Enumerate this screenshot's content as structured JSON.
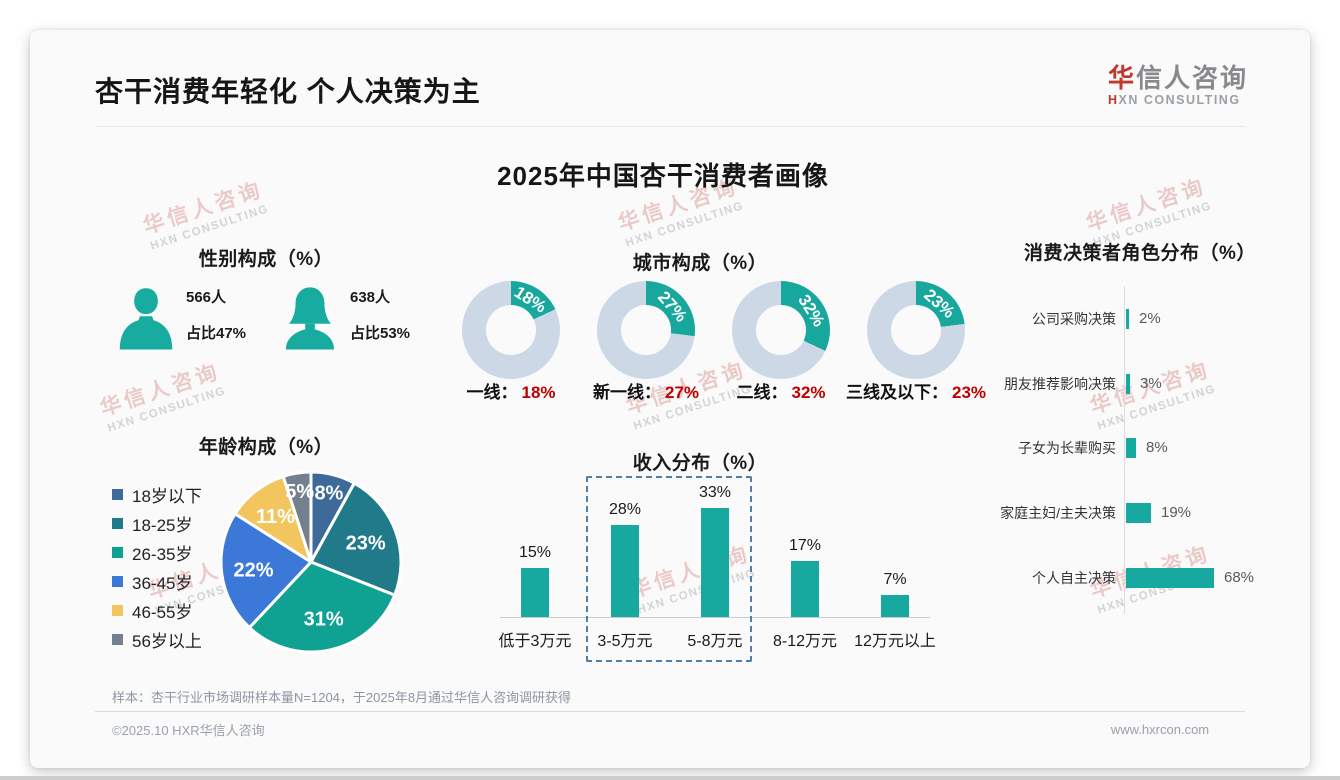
{
  "header": {
    "title": "杏干消费年轻化 个人决策为主",
    "logo": {
      "cn_accent": "华",
      "cn_rest": "信人咨询",
      "en_accent": "H",
      "en_rest": "XN CONSULTING"
    }
  },
  "main_title": "2025年中国杏干消费者画像",
  "watermark": {
    "line1": "华信人咨询",
    "line2": "HXN CONSULTING"
  },
  "colors": {
    "teal": "#17a9a0",
    "icon_teal": "#18ab9f",
    "donut_base": "#cdd8e7",
    "accent_red": "#c00000",
    "logo_red": "#c0372c",
    "highlight_border": "#4e7fac"
  },
  "chart_data": [
    {
      "id": "gender",
      "type": "table",
      "title": "性别构成（%）",
      "items": [
        {
          "icon": "male-icon",
          "count": "566人",
          "share": "占比47%"
        },
        {
          "icon": "female-icon",
          "count": "638人",
          "share": "占比53%"
        }
      ]
    },
    {
      "id": "city",
      "type": "pie",
      "subtype": "donut-set",
      "title": "城市构成（%）",
      "items": [
        {
          "label": "一线",
          "value": 18
        },
        {
          "label": "新一线",
          "value": 27
        },
        {
          "label": "二线",
          "value": 32
        },
        {
          "label": "三线及以下",
          "value": 23
        }
      ],
      "segment_color": "#18a79d",
      "base_color": "#cdd8e7",
      "value_color": "#c00000"
    },
    {
      "id": "age",
      "type": "pie",
      "title": "年龄构成（%）",
      "categories": [
        "18岁以下",
        "18-25岁",
        "26-35岁",
        "36-45岁",
        "46-55岁",
        "56岁以上"
      ],
      "values": [
        8,
        23,
        31,
        22,
        11,
        5
      ],
      "colors": [
        "#3e6a99",
        "#207a8a",
        "#0fa292",
        "#3c78d8",
        "#f2c55f",
        "#74808e"
      ],
      "legend_position": "left"
    },
    {
      "id": "income",
      "type": "bar",
      "title": "收入分布（%）",
      "categories": [
        "低于3万元",
        "3-5万元",
        "5-8万元",
        "8-12万元",
        "12万元以上"
      ],
      "values": [
        15,
        28,
        33,
        17,
        7
      ],
      "bar_color": "#17a9a0",
      "ylim": [
        0,
        35
      ],
      "highlight": {
        "categories": [
          "3-5万元",
          "5-8万元"
        ],
        "style": "dashed-box"
      }
    },
    {
      "id": "decision",
      "type": "bar",
      "subtype": "horizontal",
      "title": "消费决策者角色分布（%）",
      "categories": [
        "公司采购决策",
        "朋友推荐影响决策",
        "子女为长辈购买",
        "家庭主妇/主夫决策",
        "个人自主决策"
      ],
      "values": [
        2,
        3,
        8,
        19,
        68
      ],
      "bar_color": "#17a9a0",
      "xlim": [
        0,
        100
      ]
    }
  ],
  "footer": {
    "note": "样本：杏干行业市场调研样本量N=1204，于2025年8月通过华信人咨询调研获得",
    "copyright": "©2025.10 HXR华信人咨询",
    "website": "www.hxrcon.com"
  }
}
